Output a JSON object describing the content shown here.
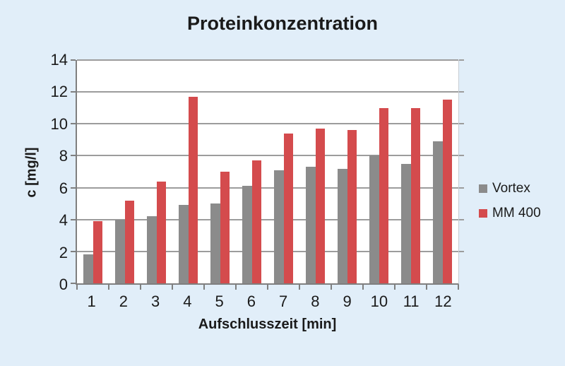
{
  "chart_data": {
    "type": "bar",
    "title": "Proteinkonzentration",
    "xlabel": "Aufschlusszeit [min]",
    "ylabel": "c [mg/l]",
    "categories": [
      "1",
      "2",
      "3",
      "4",
      "5",
      "6",
      "7",
      "8",
      "9",
      "10",
      "11",
      "12"
    ],
    "series": [
      {
        "name": "Vortex",
        "color": "#8b8b8b",
        "values": [
          1.8,
          4.0,
          4.2,
          4.9,
          5.0,
          6.1,
          7.1,
          7.3,
          7.2,
          8.0,
          7.5,
          8.9
        ]
      },
      {
        "name": "MM 400",
        "color": "#d44b4d",
        "values": [
          3.9,
          5.2,
          6.4,
          11.7,
          7.0,
          7.7,
          9.4,
          9.7,
          9.6,
          11.0,
          11.0,
          11.5
        ]
      }
    ],
    "ylim": [
      0,
      14
    ],
    "y_ticks": [
      0,
      2,
      4,
      6,
      8,
      10,
      12,
      14
    ],
    "grid": true,
    "legend_position": "right"
  },
  "colors": {
    "background": "#e1eef9",
    "plot_background": "#ffffff",
    "gridline": "#9c9c9c",
    "axis": "#7f7f7f",
    "text": "#1a1a1a"
  }
}
